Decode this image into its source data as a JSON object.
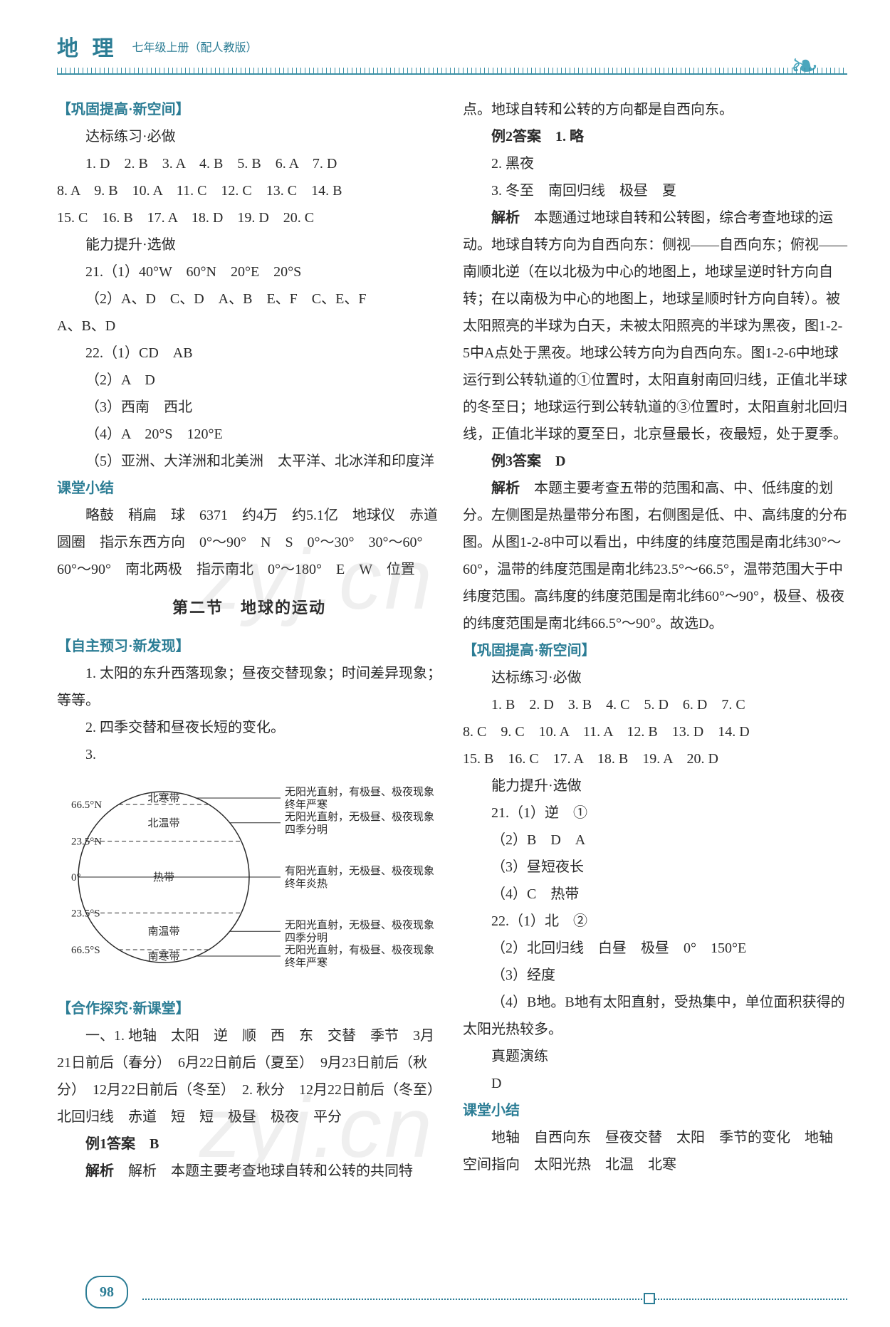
{
  "header": {
    "subject": "地 理",
    "grade": "七年级上册（配人教版）"
  },
  "page_number": "98",
  "watermark": "zyj.cn",
  "left": {
    "gonggu_head": "【巩固提高·新空间】",
    "dabiao_head": "达标练习·必做",
    "answers1": "1. D　2. B　3. A　4. B　5. B　6. A　7. D",
    "answers2": "8. A　9. B　10. A　11. C　12. C　13. C　14. B",
    "answers3": "15. C　16. B　17. A　18. D　19. D　20. C",
    "nengli_head": "能力提升·选做",
    "q21_1": "21.（1）40°W　60°N　20°E　20°S",
    "q21_2": "（2）A、D　C、D　A、B　E、F　C、E、F",
    "q21_2b": "A、B、D",
    "q22_1": "22.（1）CD　AB",
    "q22_2": "（2）A　D",
    "q22_3": "（3）西南　西北",
    "q22_4": "（4）A　20°S　120°E",
    "q22_5": "（5）亚洲、大洋洲和北美洲　太平洋、北冰洋和印度洋",
    "ketang_head": "课堂小结",
    "ketang_body1": "略鼓　稍扁　球　6371　约4万　约5.1亿　地球仪　赤道　圆圈　指示东西方向　0°～90°　N　S　0°～30°　30°～60°　60°～90°　南北两极　指示南北　0°～180°　E　W　位置",
    "section2": "第二节　地球的运动",
    "zizhu_head": "【自主预习·新发现】",
    "z1": "1. 太阳的东升西落现象；昼夜交替现象；时间差异现象；等等。",
    "z2": "2. 四季交替和昼夜长短的变化。",
    "z3": "3.",
    "diagram": {
      "type": "labeled-circle-diagram",
      "lat_labels": [
        "66.5°N",
        "23.5°N",
        "0°",
        "23.5°S",
        "66.5°S"
      ],
      "zone_labels": [
        "北寒带",
        "北温带",
        "热带",
        "南温带",
        "南寒带"
      ],
      "descriptions": [
        "无阳光直射，有极昼、极夜现象，终年严寒",
        "无阳光直射，无极昼、极夜现象，四季分明",
        "有阳光直射，无极昼、极夜现象，终年炎热",
        "无阳光直射，无极昼、极夜现象，四季分明",
        "无阳光直射，有极昼、极夜现象，终年严寒"
      ],
      "circle_stroke": "#2a2a2a",
      "line_stroke": "#2a2a2a",
      "text_color": "#2a2a2a",
      "font_size": 15
    },
    "hezuo_head": "【合作探究·新课堂】",
    "hz_body": "一、1. 地轴　太阳　逆　顺　西　东　交替　季节　3月21日前后（春分）　6月22日前后（夏至）　9月23日前后（秋分）　12月22日前后（冬至）　2. 秋分　12月22日前后（冬至）　北回归线　赤道　短　短　极昼　极夜　平分",
    "ex1_head": "例1答案　B",
    "ex1_jiexi": "解析　本题主要考查地球自转和公转的共同特"
  },
  "right": {
    "r_cont": "点。地球自转和公转的方向都是自西向东。",
    "ex2_head": "例2答案　1. 略",
    "ex2_2": "2. 黑夜",
    "ex2_3": "3. 冬至　南回归线　极昼　夏",
    "ex2_jiexi_head": "解析",
    "ex2_jiexi": "本题通过地球自转和公转图，综合考查地球的运动。地球自转方向为自西向东：侧视——自西向东；俯视——南顺北逆（在以北极为中心的地图上，地球呈逆时针方向自转；在以南极为中心的地图上，地球呈顺时针方向自转）。被太阳照亮的半球为白天，未被太阳照亮的半球为黑夜，图1-2-5中A点处于黑夜。地球公转方向为自西向东。图1-2-6中地球运行到公转轨道的①位置时，太阳直射南回归线，正值北半球的冬至日；地球运行到公转轨道的③位置时，太阳直射北回归线，正值北半球的夏至日，北京昼最长，夜最短，处于夏季。",
    "ex3_head": "例3答案　D",
    "ex3_jiexi_head": "解析",
    "ex3_jiexi": "本题主要考查五带的范围和高、中、低纬度的划分。左侧图是热量带分布图，右侧图是低、中、高纬度的分布图。从图1-2-8中可以看出，中纬度的纬度范围是南北纬30°～60°，温带的纬度范围是南北纬23.5°～66.5°，温带范围大于中纬度范围。高纬度的纬度范围是南北纬60°～90°，极昼、极夜的纬度范围是南北纬66.5°～90°。故选D。",
    "gonggu_head": "【巩固提高·新空间】",
    "dabiao_head": "达标练习·必做",
    "ans1": "1. B　2. D　3. B　4. C　5. D　6. D　7. C",
    "ans2": "8. C　9. C　10. A　11. A　12. B　13. D　14. D",
    "ans3": "15. B　16. C　17. A　18. B　19. A　20. D",
    "nengli_head": "能力提升·选做",
    "q21_1": "21.（1）逆　①",
    "q21_2": "（2）B　D　A",
    "q21_3": "（3）昼短夜长",
    "q21_4": "（4）C　热带",
    "q22_1": "22.（1）北　②",
    "q22_2": "（2）北回归线　白昼　极昼　0°　150°E",
    "q22_3": "（3）经度",
    "q22_4": "（4）B地。B地有太阳直射，受热集中，单位面积获得的太阳光热较多。",
    "zhenti_head": "真题演练",
    "zhenti_ans": "D",
    "ketang_head": "课堂小结",
    "ketang_body": "地轴　自西向东　昼夜交替　太阳　季节的变化　地轴　空间指向　太阳光热　北温　北寒"
  }
}
